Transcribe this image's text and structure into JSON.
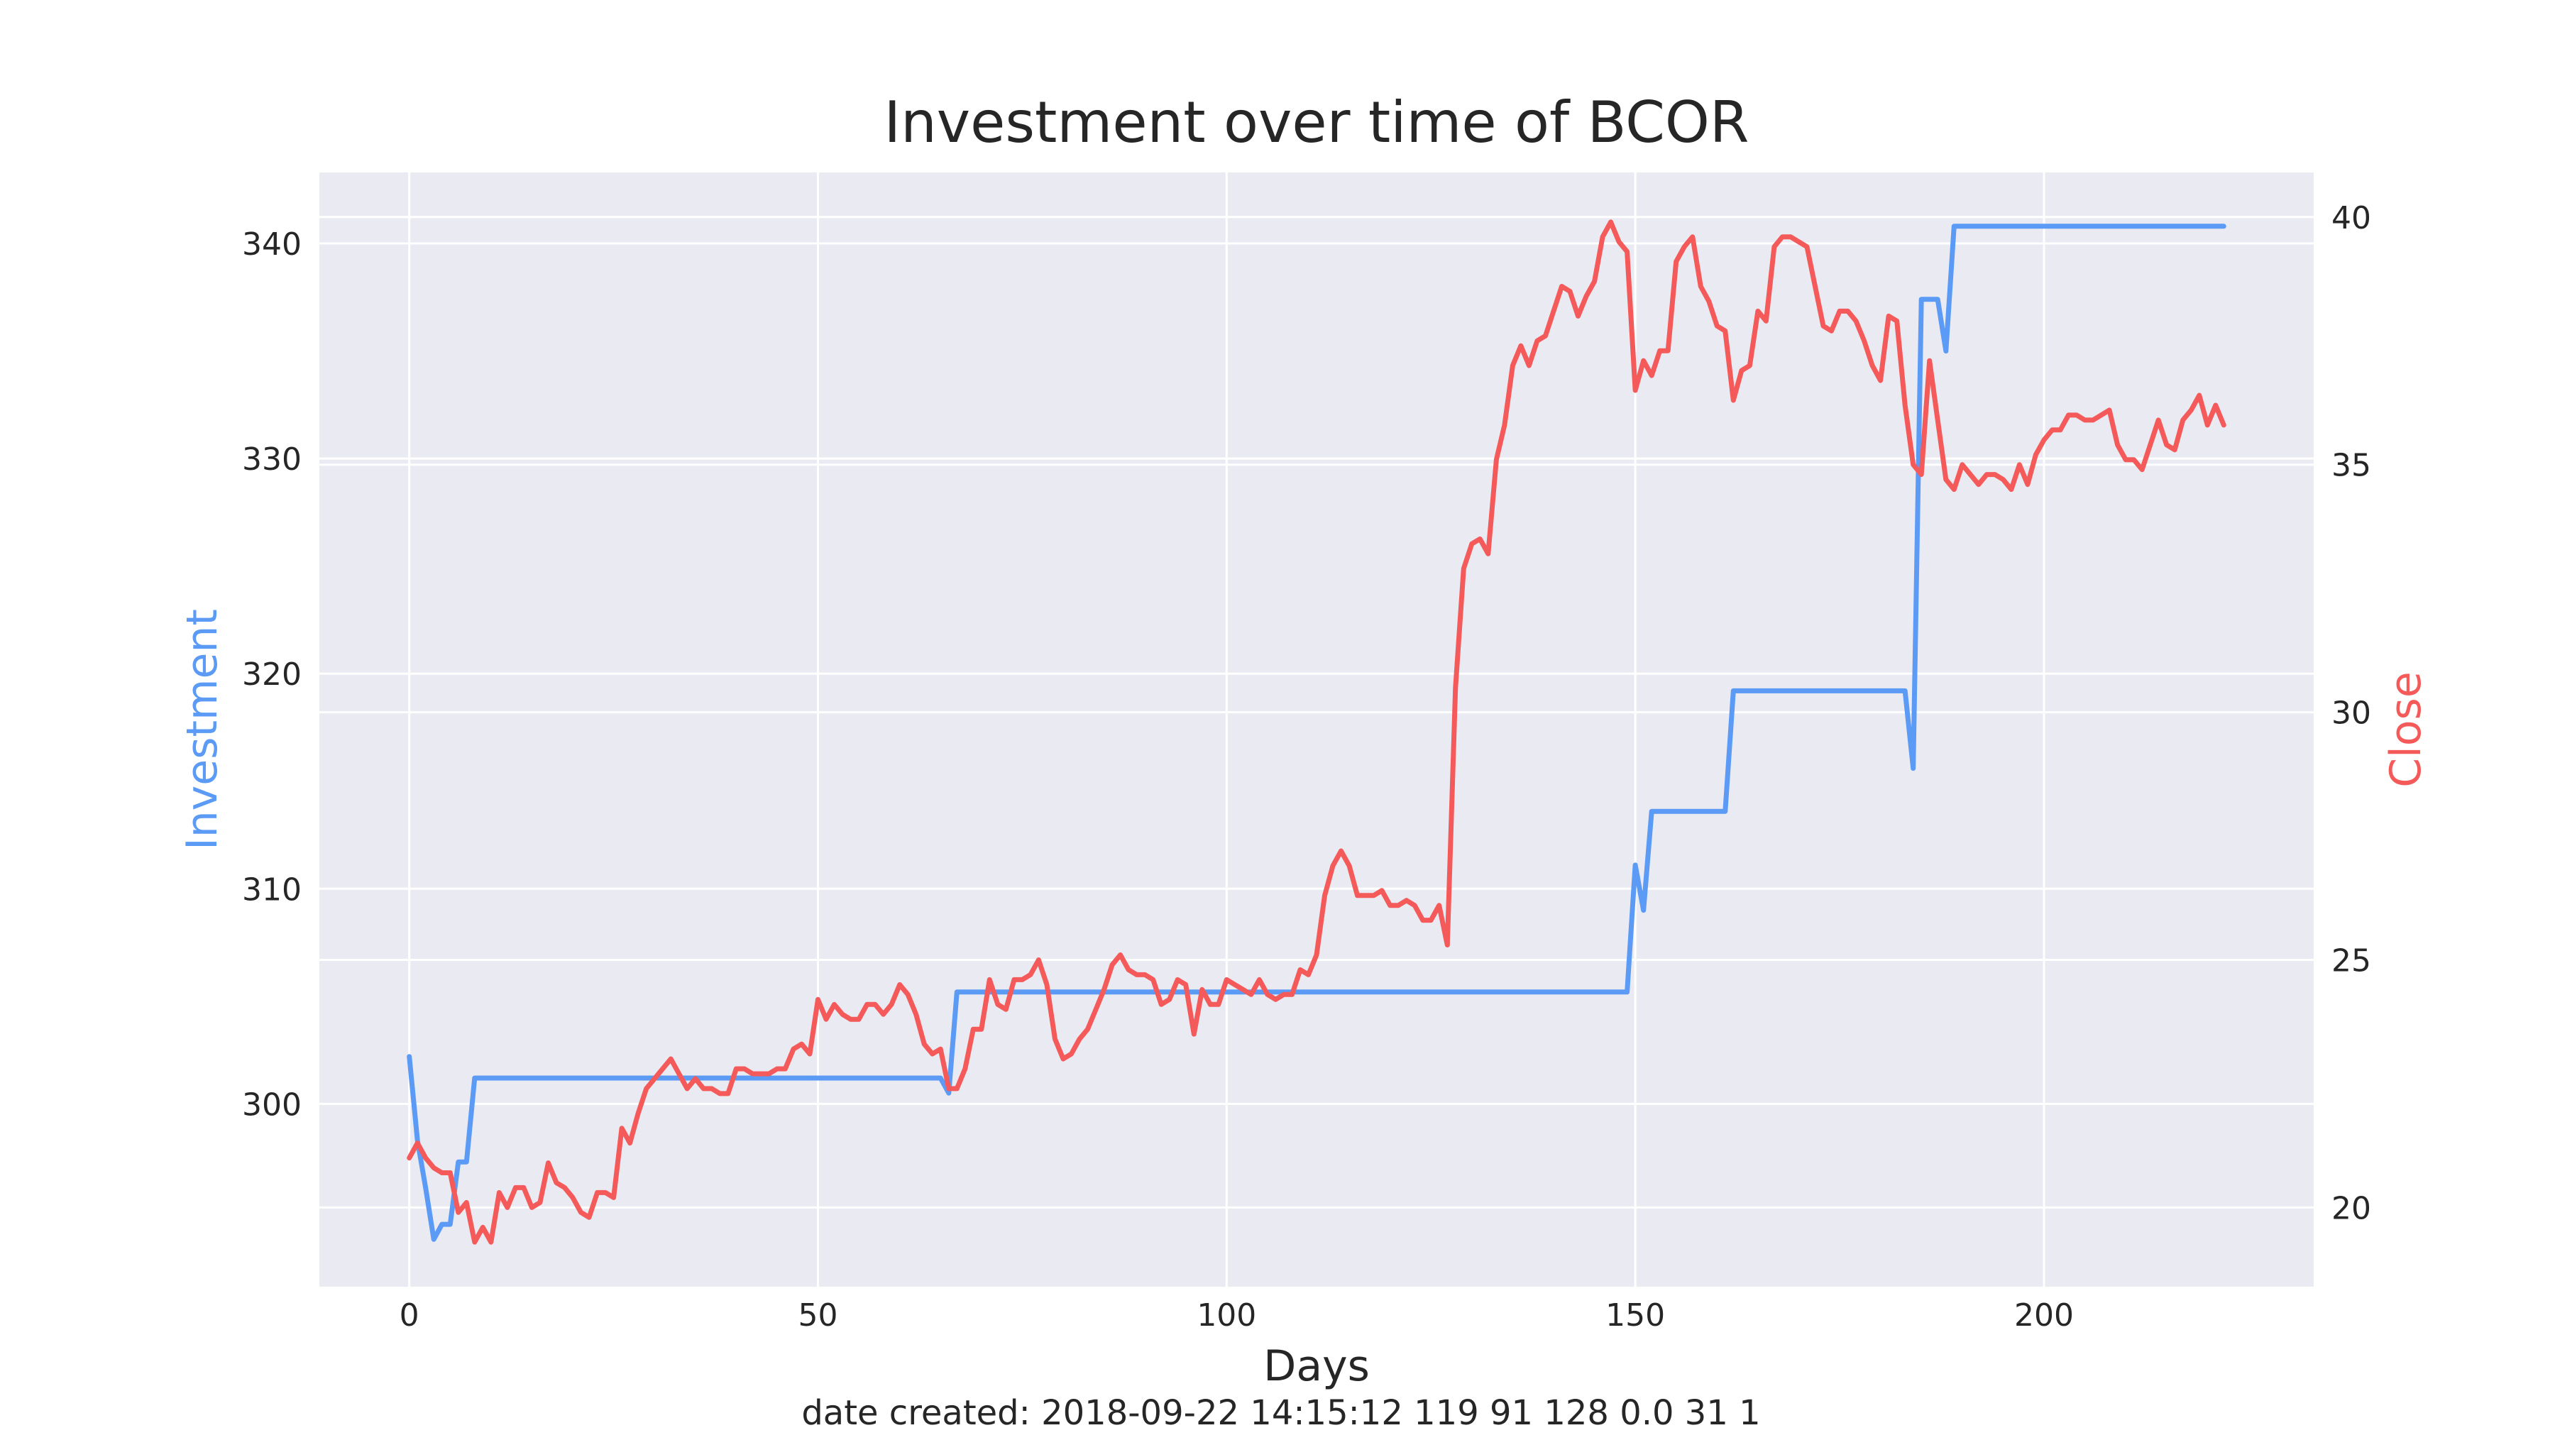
{
  "chart_data": {
    "type": "line",
    "title": "Investment over time of BCOR",
    "xlabel": "Days",
    "ylabel_left": "Investment",
    "ylabel_right": "Close",
    "footer": "date created: 2018-09-22 14:15:12 119 91 128 0.0 31 1",
    "xlim": [
      -11,
      233
    ],
    "ylim_left": [
      291.5,
      343.3
    ],
    "ylim_right": [
      18.4,
      40.9
    ],
    "x_ticks": [
      0,
      50,
      100,
      150,
      200
    ],
    "y_ticks_left": [
      300,
      310,
      320,
      330,
      340
    ],
    "y_ticks_right": [
      20,
      25,
      30,
      35,
      40
    ],
    "grid": true,
    "colors": {
      "background": "#eaeaf2",
      "grid": "#ffffff",
      "investment": "#5b9bf5",
      "close": "#f55a5a",
      "text": "#262626"
    },
    "series": [
      {
        "axis": "left",
        "color": "#5b9bf5",
        "x": [
          0,
          1,
          2,
          3,
          4,
          5,
          6,
          7,
          8,
          9,
          20,
          40,
          60,
          65,
          66,
          67,
          80,
          100,
          130,
          149,
          150,
          151,
          152,
          155,
          161,
          162,
          170,
          183,
          184,
          185,
          186,
          187,
          188,
          189,
          200,
          222
        ],
        "y": [
          302.2,
          298.3,
          296.1,
          293.7,
          294.4,
          294.4,
          297.3,
          297.3,
          301.2,
          301.2,
          301.2,
          301.2,
          301.2,
          301.2,
          300.5,
          305.2,
          305.2,
          305.2,
          305.2,
          305.2,
          311.1,
          309,
          313.6,
          313.6,
          313.6,
          319.2,
          319.2,
          319.2,
          315.6,
          337.4,
          337.4,
          337.4,
          335,
          340.8,
          340.8,
          340.8
        ]
      },
      {
        "axis": "right",
        "color": "#f55a5a",
        "x": [
          0,
          1,
          2,
          3,
          4,
          5,
          6,
          7,
          8,
          9,
          10,
          11,
          12,
          13,
          14,
          15,
          16,
          17,
          18,
          19,
          20,
          21,
          22,
          23,
          24,
          25,
          26,
          27,
          28,
          29,
          30,
          31,
          32,
          33,
          34,
          35,
          36,
          37,
          38,
          39,
          40,
          41,
          42,
          43,
          44,
          45,
          46,
          47,
          48,
          49,
          50,
          51,
          52,
          53,
          54,
          55,
          56,
          57,
          58,
          59,
          60,
          61,
          62,
          63,
          64,
          65,
          66,
          67,
          68,
          69,
          70,
          71,
          72,
          73,
          74,
          75,
          76,
          77,
          78,
          79,
          80,
          81,
          82,
          83,
          84,
          85,
          86,
          87,
          88,
          89,
          90,
          91,
          92,
          93,
          94,
          95,
          96,
          97,
          98,
          99,
          100,
          101,
          102,
          103,
          104,
          105,
          106,
          107,
          108,
          109,
          110,
          111,
          112,
          113,
          114,
          115,
          116,
          117,
          118,
          119,
          120,
          121,
          122,
          123,
          124,
          125,
          126,
          127,
          128,
          129,
          130,
          131,
          132,
          133,
          134,
          135,
          136,
          137,
          138,
          139,
          140,
          141,
          142,
          143,
          144,
          145,
          146,
          147,
          148,
          149,
          150,
          151,
          152,
          153,
          154,
          155,
          156,
          157,
          158,
          159,
          160,
          161,
          162,
          163,
          164,
          165,
          166,
          167,
          168,
          169,
          170,
          171,
          172,
          173,
          174,
          175,
          176,
          177,
          178,
          179,
          180,
          181,
          182,
          183,
          184,
          185,
          186,
          187,
          188,
          189,
          190,
          191,
          192,
          193,
          194,
          195,
          196,
          197,
          198,
          199,
          200,
          201,
          202,
          203,
          204,
          205,
          206,
          207,
          208,
          209,
          210,
          211,
          212,
          213,
          214,
          215,
          216,
          217,
          218,
          219,
          220,
          221,
          222
        ],
        "y": [
          21,
          21.3,
          21,
          20.8,
          20.7,
          20.7,
          19.9,
          20.1,
          19.3,
          19.6,
          19.3,
          20.3,
          20,
          20.4,
          20.4,
          20,
          20.1,
          20.9,
          20.5,
          20.4,
          20.2,
          19.9,
          19.8,
          20.3,
          20.3,
          20.2,
          21.6,
          21.3,
          21.9,
          22.4,
          22.6,
          22.8,
          23,
          22.7,
          22.4,
          22.6,
          22.4,
          22.4,
          22.3,
          22.3,
          22.8,
          22.8,
          22.7,
          22.7,
          22.7,
          22.8,
          22.8,
          23.2,
          23.3,
          23.1,
          24.2,
          23.8,
          24.1,
          23.9,
          23.8,
          23.8,
          24.1,
          24.1,
          23.9,
          24.1,
          24.5,
          24.3,
          23.9,
          23.3,
          23.1,
          23.2,
          22.4,
          22.4,
          22.8,
          23.6,
          23.6,
          24.6,
          24.1,
          24,
          24.6,
          24.6,
          24.7,
          25,
          24.5,
          23.4,
          23,
          23.1,
          23.4,
          23.6,
          24,
          24.4,
          24.9,
          25.1,
          24.8,
          24.7,
          24.7,
          24.6,
          24.1,
          24.2,
          24.6,
          24.5,
          23.5,
          24.4,
          24.1,
          24.1,
          24.6,
          24.5,
          24.4,
          24.3,
          24.6,
          24.3,
          24.2,
          24.3,
          24.3,
          24.8,
          24.7,
          25.1,
          26.3,
          26.9,
          27.2,
          26.9,
          26.3,
          26.3,
          26.3,
          26.4,
          26.1,
          26.1,
          26.2,
          26.1,
          25.8,
          25.8,
          26.1,
          25.3,
          30.5,
          32.9,
          33.4,
          33.5,
          33.2,
          35.1,
          35.8,
          37,
          37.4,
          37,
          37.5,
          37.6,
          38.1,
          38.6,
          38.5,
          38,
          38.4,
          38.7,
          39.6,
          39.9,
          39.5,
          39.3,
          36.5,
          37.1,
          36.8,
          37.3,
          37.3,
          39.1,
          39.4,
          39.6,
          38.6,
          38.3,
          37.8,
          37.7,
          36.3,
          36.9,
          37,
          38.1,
          37.9,
          39.4,
          39.6,
          39.6,
          39.5,
          39.4,
          38.6,
          37.8,
          37.7,
          38.1,
          38.1,
          37.9,
          37.5,
          37,
          36.7,
          38,
          37.9,
          36.2,
          35,
          34.8,
          37.1,
          35.9,
          34.7,
          34.5,
          35,
          34.8,
          34.6,
          34.8,
          34.8,
          34.7,
          34.5,
          35,
          34.6,
          35.2,
          35.5,
          35.7,
          35.7,
          36,
          36,
          35.9,
          35.9,
          36,
          36.1,
          35.4,
          35.1,
          35.1,
          34.9,
          35.4,
          35.9,
          35.4,
          35.3,
          35.9,
          36.1,
          36.4,
          35.8,
          36.2,
          35.8
        ]
      }
    ]
  }
}
